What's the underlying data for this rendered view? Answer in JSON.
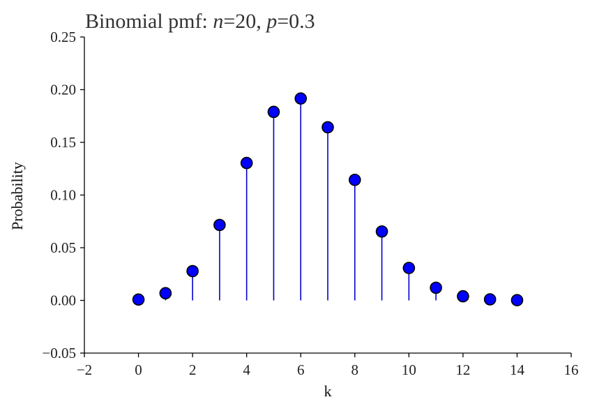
{
  "chart_data": {
    "type": "scatter",
    "title_prefix": "Binomial pmf: ",
    "title_n_sym": "n",
    "title_n_val": "=20, ",
    "title_p_sym": "p",
    "title_p_val": "=0.3",
    "xlabel": "k",
    "ylabel": "Probability",
    "xlim": [
      -2,
      16
    ],
    "ylim": [
      -0.05,
      0.25
    ],
    "xticks": [
      "−2",
      "0",
      "2",
      "4",
      "6",
      "8",
      "10",
      "12",
      "14",
      "16"
    ],
    "xtick_values": [
      -2,
      0,
      2,
      4,
      6,
      8,
      10,
      12,
      14,
      16
    ],
    "yticks": [
      "−0.05",
      "0.00",
      "0.05",
      "0.10",
      "0.15",
      "0.20",
      "0.25"
    ],
    "ytick_values": [
      -0.05,
      0.0,
      0.05,
      0.1,
      0.15,
      0.2,
      0.25
    ],
    "series": [
      {
        "x": [
          0,
          1,
          2,
          3,
          4,
          5,
          6,
          7,
          8,
          9,
          10,
          11,
          12,
          13,
          14
        ],
        "values": [
          0.0008,
          0.0068,
          0.0278,
          0.0716,
          0.1304,
          0.1789,
          0.1916,
          0.1643,
          0.1144,
          0.0654,
          0.0308,
          0.012,
          0.0039,
          0.001,
          0.0002
        ],
        "marker_color": "#0000ff",
        "stem_color": "#0000cc"
      }
    ],
    "grid": false
  }
}
